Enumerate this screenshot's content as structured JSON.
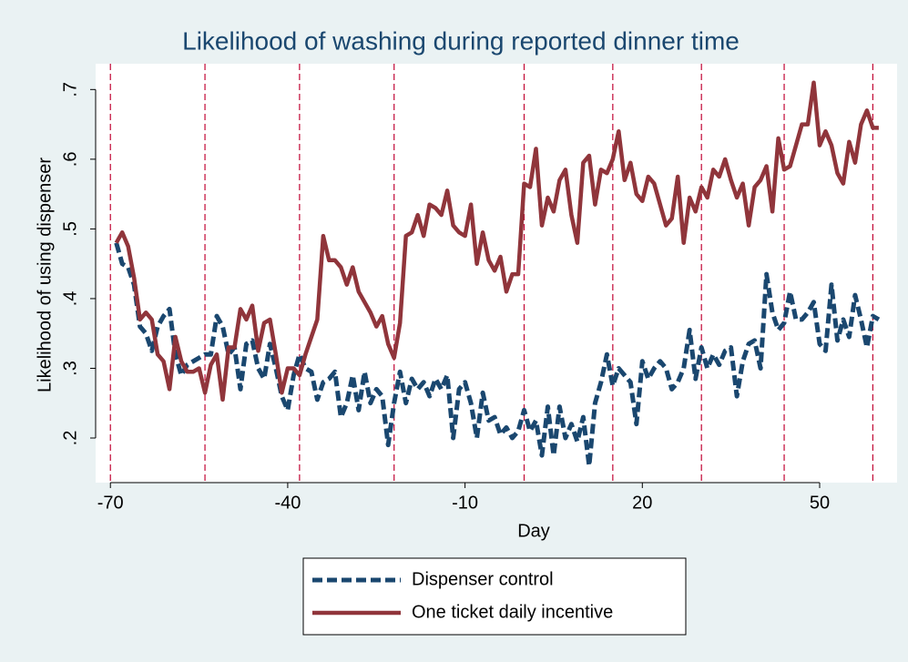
{
  "chart_data": {
    "type": "line",
    "title": "Likelihood of washing during reported dinner time",
    "x_label": "Day",
    "y_label": "Likelihood of using dispenser",
    "x": [
      -69,
      -68,
      -67,
      -66,
      -65,
      -64,
      -63,
      -62,
      -61,
      -60,
      -59,
      -58,
      -57,
      -56,
      -55,
      -54,
      -53,
      -52,
      -51,
      -50,
      -49,
      -48,
      -47,
      -46,
      -45,
      -44,
      -43,
      -42,
      -41,
      -40,
      -39,
      -38,
      -37,
      -36,
      -35,
      -34,
      -33,
      -32,
      -31,
      -30,
      -29,
      -28,
      -27,
      -26,
      -25,
      -24,
      -23,
      -22,
      -21,
      -20,
      -19,
      -18,
      -17,
      -16,
      -15,
      -14,
      -13,
      -12,
      -11,
      -10,
      -9,
      -8,
      -7,
      -6,
      -5,
      -4,
      -3,
      -2,
      -1,
      0,
      1,
      2,
      3,
      4,
      5,
      6,
      7,
      8,
      9,
      10,
      11,
      12,
      13,
      14,
      15,
      16,
      17,
      18,
      19,
      20,
      21,
      22,
      23,
      24,
      25,
      26,
      27,
      28,
      29,
      30,
      31,
      32,
      33,
      34,
      35,
      36,
      37,
      38,
      39,
      40,
      41,
      42,
      43,
      44,
      45,
      46,
      47,
      48,
      49,
      50,
      51,
      52,
      53,
      54,
      55,
      56,
      57,
      58,
      59,
      60
    ],
    "series": [
      {
        "name": "Dispenser control",
        "color": "#1a476f",
        "dash": true,
        "values": [
          0.48,
          0.45,
          0.445,
          0.42,
          0.36,
          0.35,
          0.325,
          0.36,
          0.375,
          0.385,
          0.32,
          0.29,
          0.305,
          0.31,
          0.315,
          0.32,
          0.32,
          0.375,
          0.36,
          0.32,
          0.33,
          0.27,
          0.335,
          0.34,
          0.3,
          0.285,
          0.335,
          0.3,
          0.26,
          0.24,
          0.29,
          0.32,
          0.3,
          0.295,
          0.255,
          0.28,
          0.285,
          0.295,
          0.23,
          0.25,
          0.29,
          0.24,
          0.295,
          0.25,
          0.27,
          0.26,
          0.19,
          0.25,
          0.295,
          0.25,
          0.285,
          0.27,
          0.28,
          0.26,
          0.285,
          0.27,
          0.29,
          0.2,
          0.27,
          0.28,
          0.25,
          0.2,
          0.265,
          0.225,
          0.23,
          0.205,
          0.215,
          0.2,
          0.21,
          0.24,
          0.21,
          0.225,
          0.175,
          0.245,
          0.175,
          0.245,
          0.2,
          0.22,
          0.195,
          0.23,
          0.16,
          0.25,
          0.28,
          0.32,
          0.275,
          0.3,
          0.29,
          0.28,
          0.22,
          0.31,
          0.285,
          0.3,
          0.31,
          0.3,
          0.27,
          0.28,
          0.3,
          0.355,
          0.285,
          0.33,
          0.3,
          0.32,
          0.305,
          0.325,
          0.33,
          0.26,
          0.31,
          0.335,
          0.34,
          0.3,
          0.435,
          0.38,
          0.355,
          0.365,
          0.41,
          0.37,
          0.37,
          0.38,
          0.395,
          0.335,
          0.325,
          0.42,
          0.34,
          0.37,
          0.345,
          0.405,
          0.37,
          0.33,
          0.375,
          0.37
        ]
      },
      {
        "name": "One ticket daily incentive",
        "color": "#90353b",
        "dash": false,
        "values": [
          0.48,
          0.495,
          0.475,
          0.43,
          0.37,
          0.38,
          0.37,
          0.32,
          0.31,
          0.27,
          0.345,
          0.31,
          0.295,
          0.295,
          0.3,
          0.265,
          0.305,
          0.32,
          0.255,
          0.33,
          0.33,
          0.385,
          0.37,
          0.39,
          0.325,
          0.365,
          0.37,
          0.32,
          0.265,
          0.3,
          0.3,
          0.29,
          0.32,
          0.345,
          0.37,
          0.49,
          0.455,
          0.455,
          0.445,
          0.42,
          0.445,
          0.41,
          0.395,
          0.38,
          0.36,
          0.375,
          0.335,
          0.315,
          0.365,
          0.49,
          0.495,
          0.52,
          0.49,
          0.535,
          0.53,
          0.52,
          0.555,
          0.505,
          0.495,
          0.49,
          0.535,
          0.45,
          0.495,
          0.455,
          0.44,
          0.46,
          0.41,
          0.435,
          0.435,
          0.565,
          0.56,
          0.615,
          0.505,
          0.545,
          0.525,
          0.57,
          0.585,
          0.52,
          0.48,
          0.595,
          0.605,
          0.535,
          0.585,
          0.58,
          0.6,
          0.64,
          0.57,
          0.595,
          0.55,
          0.54,
          0.575,
          0.565,
          0.535,
          0.505,
          0.515,
          0.575,
          0.48,
          0.545,
          0.525,
          0.56,
          0.545,
          0.585,
          0.575,
          0.6,
          0.57,
          0.545,
          0.565,
          0.505,
          0.56,
          0.57,
          0.59,
          0.525,
          0.63,
          0.585,
          0.59,
          0.62,
          0.65,
          0.65,
          0.71,
          0.62,
          0.64,
          0.62,
          0.58,
          0.565,
          0.625,
          0.595,
          0.65,
          0.67,
          0.645,
          0.645
        ]
      }
    ],
    "xlim": [
      -72.5,
      63.1
    ],
    "xticks": [
      -70,
      -40,
      -10,
      20,
      50
    ],
    "ylim": [
      0.136,
      0.737
    ],
    "yticks": [
      {
        "value": 0.2,
        "label": ".2"
      },
      {
        "value": 0.3,
        "label": ".3"
      },
      {
        "value": 0.4,
        "label": ".4"
      },
      {
        "value": 0.5,
        "label": ".5"
      },
      {
        "value": 0.6,
        "label": ".6"
      },
      {
        "value": 0.7,
        "label": ".7"
      }
    ],
    "xlines": [
      -70,
      -54,
      -38,
      -22,
      0,
      15,
      30,
      44,
      59
    ],
    "xline_color": "#c10534",
    "legend": "bottom"
  }
}
